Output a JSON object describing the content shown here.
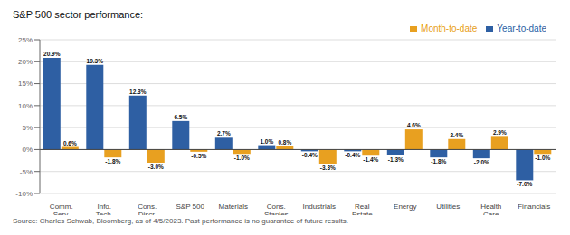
{
  "chart_data": {
    "type": "bar",
    "title": "S&P 500 sector performance:  ",
    "source": "Source: Charles Schwab, Bloomberg, as of 4/5/2023. Past performance is no guarantee of future results.",
    "categories": [
      "Comm.\nServ.",
      "Info.\nTech.",
      "Cons.\nDiscr.",
      "S&P 500",
      "Materials",
      "Cons.\nStaples",
      "Industrials",
      "Real\nEstate",
      "Energy",
      "Utilities",
      "Health\nCare",
      "Financials"
    ],
    "series": [
      {
        "name": "Year-to-date",
        "color": "#2e5fa3",
        "values": [
          20.9,
          19.3,
          12.3,
          6.5,
          2.7,
          1.0,
          -0.4,
          -0.4,
          -1.3,
          -1.8,
          -2.0,
          -7.0
        ],
        "value_labels": [
          "20.9%",
          "19.3%",
          "12.3%",
          "6.5%",
          "2.7%",
          "1.0%",
          "-0.4%",
          "-0.4%",
          "-1.3%",
          "-1.8%",
          "-2.0%",
          "-7.0%"
        ]
      },
      {
        "name": "Month-to-date",
        "color": "#e8a020",
        "values": [
          0.6,
          -1.8,
          -3.0,
          -0.5,
          -1.0,
          0.8,
          -3.3,
          -1.4,
          4.6,
          2.4,
          2.9,
          -1.0
        ],
        "value_labels": [
          "0.6%",
          "-1.8%",
          "-3.0%",
          "-0.5%",
          "-1.0%",
          "0.8%",
          "-3.3%",
          "-1.4%",
          "4.6%",
          "2.4%",
          "2.9%",
          "-1.0%"
        ]
      }
    ],
    "ylim": [
      -10,
      25
    ],
    "yticks": [
      {
        "value": -10,
        "label": "-10%"
      },
      {
        "value": -5,
        "label": "-5%"
      },
      {
        "value": 0,
        "label": "0%"
      },
      {
        "value": 5,
        "label": "5%"
      },
      {
        "value": 10,
        "label": "10%"
      },
      {
        "value": 15,
        "label": "15%"
      },
      {
        "value": 20,
        "label": "20%"
      },
      {
        "value": 25,
        "label": "25%"
      }
    ],
    "grid": true,
    "legend": "top",
    "data_labels": true
  }
}
